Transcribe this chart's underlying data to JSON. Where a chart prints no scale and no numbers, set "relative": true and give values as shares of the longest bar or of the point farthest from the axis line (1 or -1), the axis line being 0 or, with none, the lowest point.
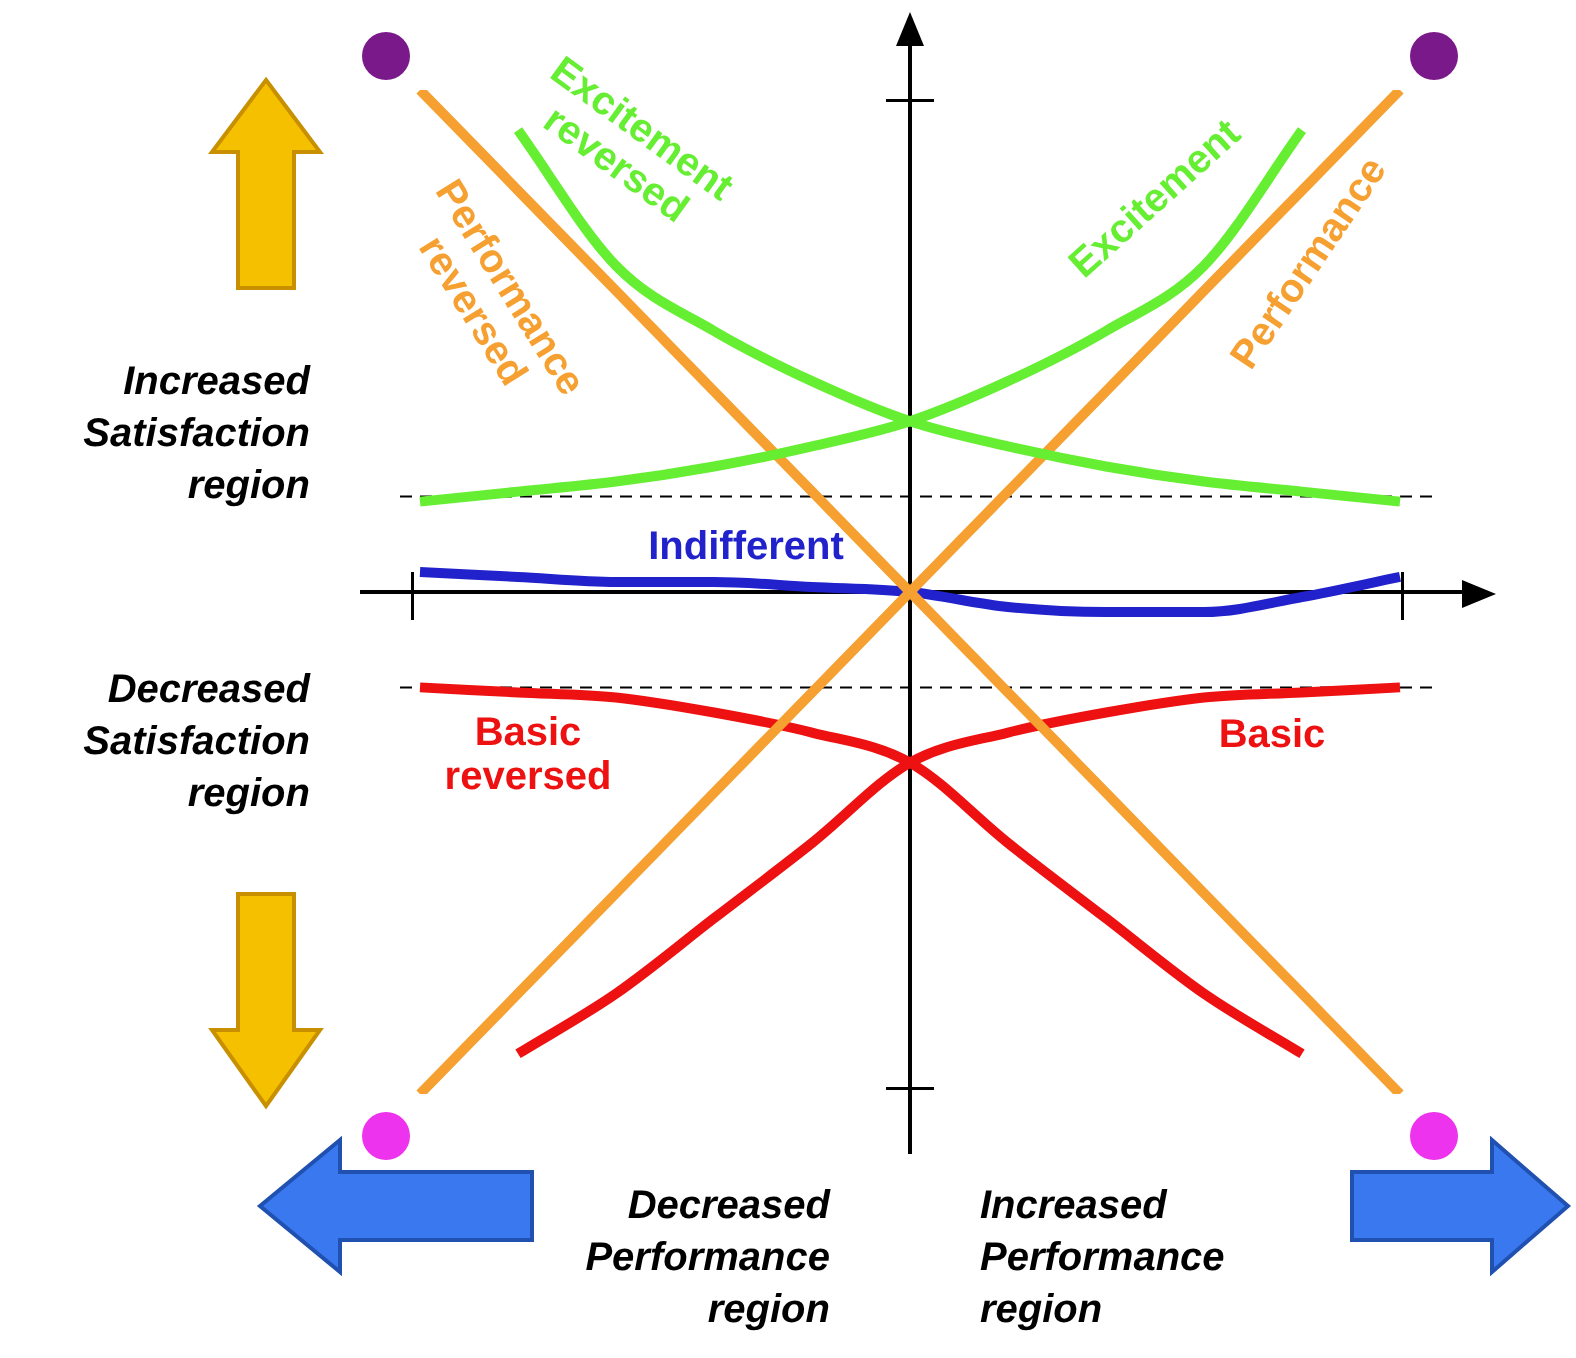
{
  "chart_data": {
    "type": "line",
    "relative": true,
    "categories": [
      null,
      null,
      null,
      null,
      null,
      null,
      null,
      null,
      null,
      null,
      null
    ],
    "series": [
      {
        "name": "Excitement",
        "color": "#66ee33",
        "values": [
          0.18,
          0.2,
          0.22,
          0.25,
          0.29,
          0.34,
          0.42,
          0.52,
          0.65,
          0.92,
          null
        ]
      },
      {
        "name": "Excitement reversed",
        "color": "#66ee33",
        "values": [
          null,
          0.92,
          0.65,
          0.52,
          0.42,
          0.34,
          0.29,
          0.25,
          0.22,
          0.2,
          0.18
        ]
      },
      {
        "name": "Performance",
        "color": "#f5a030",
        "values": [
          -1,
          -0.8,
          -0.6,
          -0.4,
          -0.2,
          0,
          0.2,
          0.4,
          0.6,
          0.8,
          1
        ]
      },
      {
        "name": "Performance reversed",
        "color": "#f5a030",
        "values": [
          1,
          0.8,
          0.6,
          0.4,
          0.2,
          0,
          -0.2,
          -0.4,
          -0.6,
          -0.8,
          -1
        ]
      },
      {
        "name": "Indifferent",
        "color": "#2222cc",
        "values": [
          0.04,
          0.03,
          0.02,
          0.02,
          0.01,
          0,
          -0.03,
          -0.04,
          -0.04,
          -0.01,
          0.03
        ]
      },
      {
        "name": "Basic",
        "color": "#ee1111",
        "values": [
          null,
          -0.92,
          -0.8,
          -0.65,
          -0.5,
          -0.34,
          -0.28,
          -0.24,
          -0.21,
          -0.2,
          -0.19
        ]
      },
      {
        "name": "Basic reversed",
        "color": "#ee1111",
        "values": [
          -0.19,
          -0.2,
          -0.21,
          -0.24,
          -0.28,
          -0.34,
          -0.5,
          -0.65,
          -0.8,
          -0.92,
          null
        ]
      }
    ],
    "ref_lines": [
      {
        "axis": "y",
        "value": 0.19,
        "color": "#000000",
        "line_style": "dashed"
      },
      {
        "axis": "y",
        "value": -0.19,
        "color": "#000000",
        "line_style": "dashed"
      }
    ],
    "annotations": [
      "Increased Satisfaction region",
      "Decreased Satisfaction region",
      "Decreased Performance region",
      "Increased Performance region"
    ],
    "legend": false,
    "marker": "none",
    "line_style": "solid"
  }
}
